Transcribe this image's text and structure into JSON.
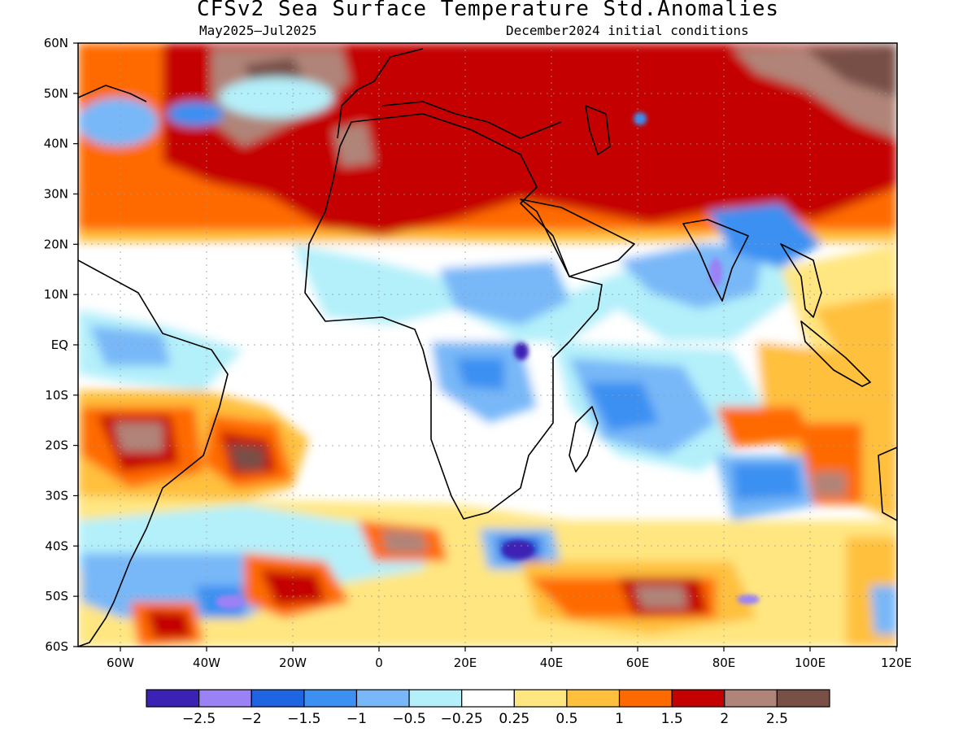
{
  "header": {
    "title": "CFSv2 Sea Surface Temperature Std.Anomalies",
    "period": "May2025–Jul2025",
    "initial_conditions": "December2024 initial conditions"
  },
  "axes": {
    "lat_labels": [
      "60N",
      "50N",
      "40N",
      "30N",
      "20N",
      "10N",
      "EQ",
      "10S",
      "20S",
      "30S",
      "40S",
      "50S",
      "60S"
    ],
    "lon_labels": [
      "60W",
      "40W",
      "20W",
      "0",
      "20E",
      "40E",
      "60E",
      "80E",
      "100E",
      "120E"
    ]
  },
  "colorbar": {
    "colors": [
      "#3c22b4",
      "#9a82f6",
      "#1f64e0",
      "#3b90f2",
      "#78b8f8",
      "#b4f0fa",
      "#ffffff",
      "#ffe680",
      "#ffc03c",
      "#ff6a00",
      "#c40000",
      "#b08478",
      "#785046"
    ],
    "labels": [
      "−2.5",
      "−2",
      "−1.5",
      "−1",
      "−0.5",
      "−0.25",
      "0.25",
      "0.5",
      "1",
      "1.5",
      "2",
      "2.5"
    ]
  },
  "map_regions": {
    "north_atlantic_mediterranean": "strong warm anomalies (1.5 to 2.5+)",
    "tropical_atlantic_indian": "cool to near-normal (-1 to 0.25)",
    "southern_ocean": "mixed bands of warm and cool anomalies"
  }
}
